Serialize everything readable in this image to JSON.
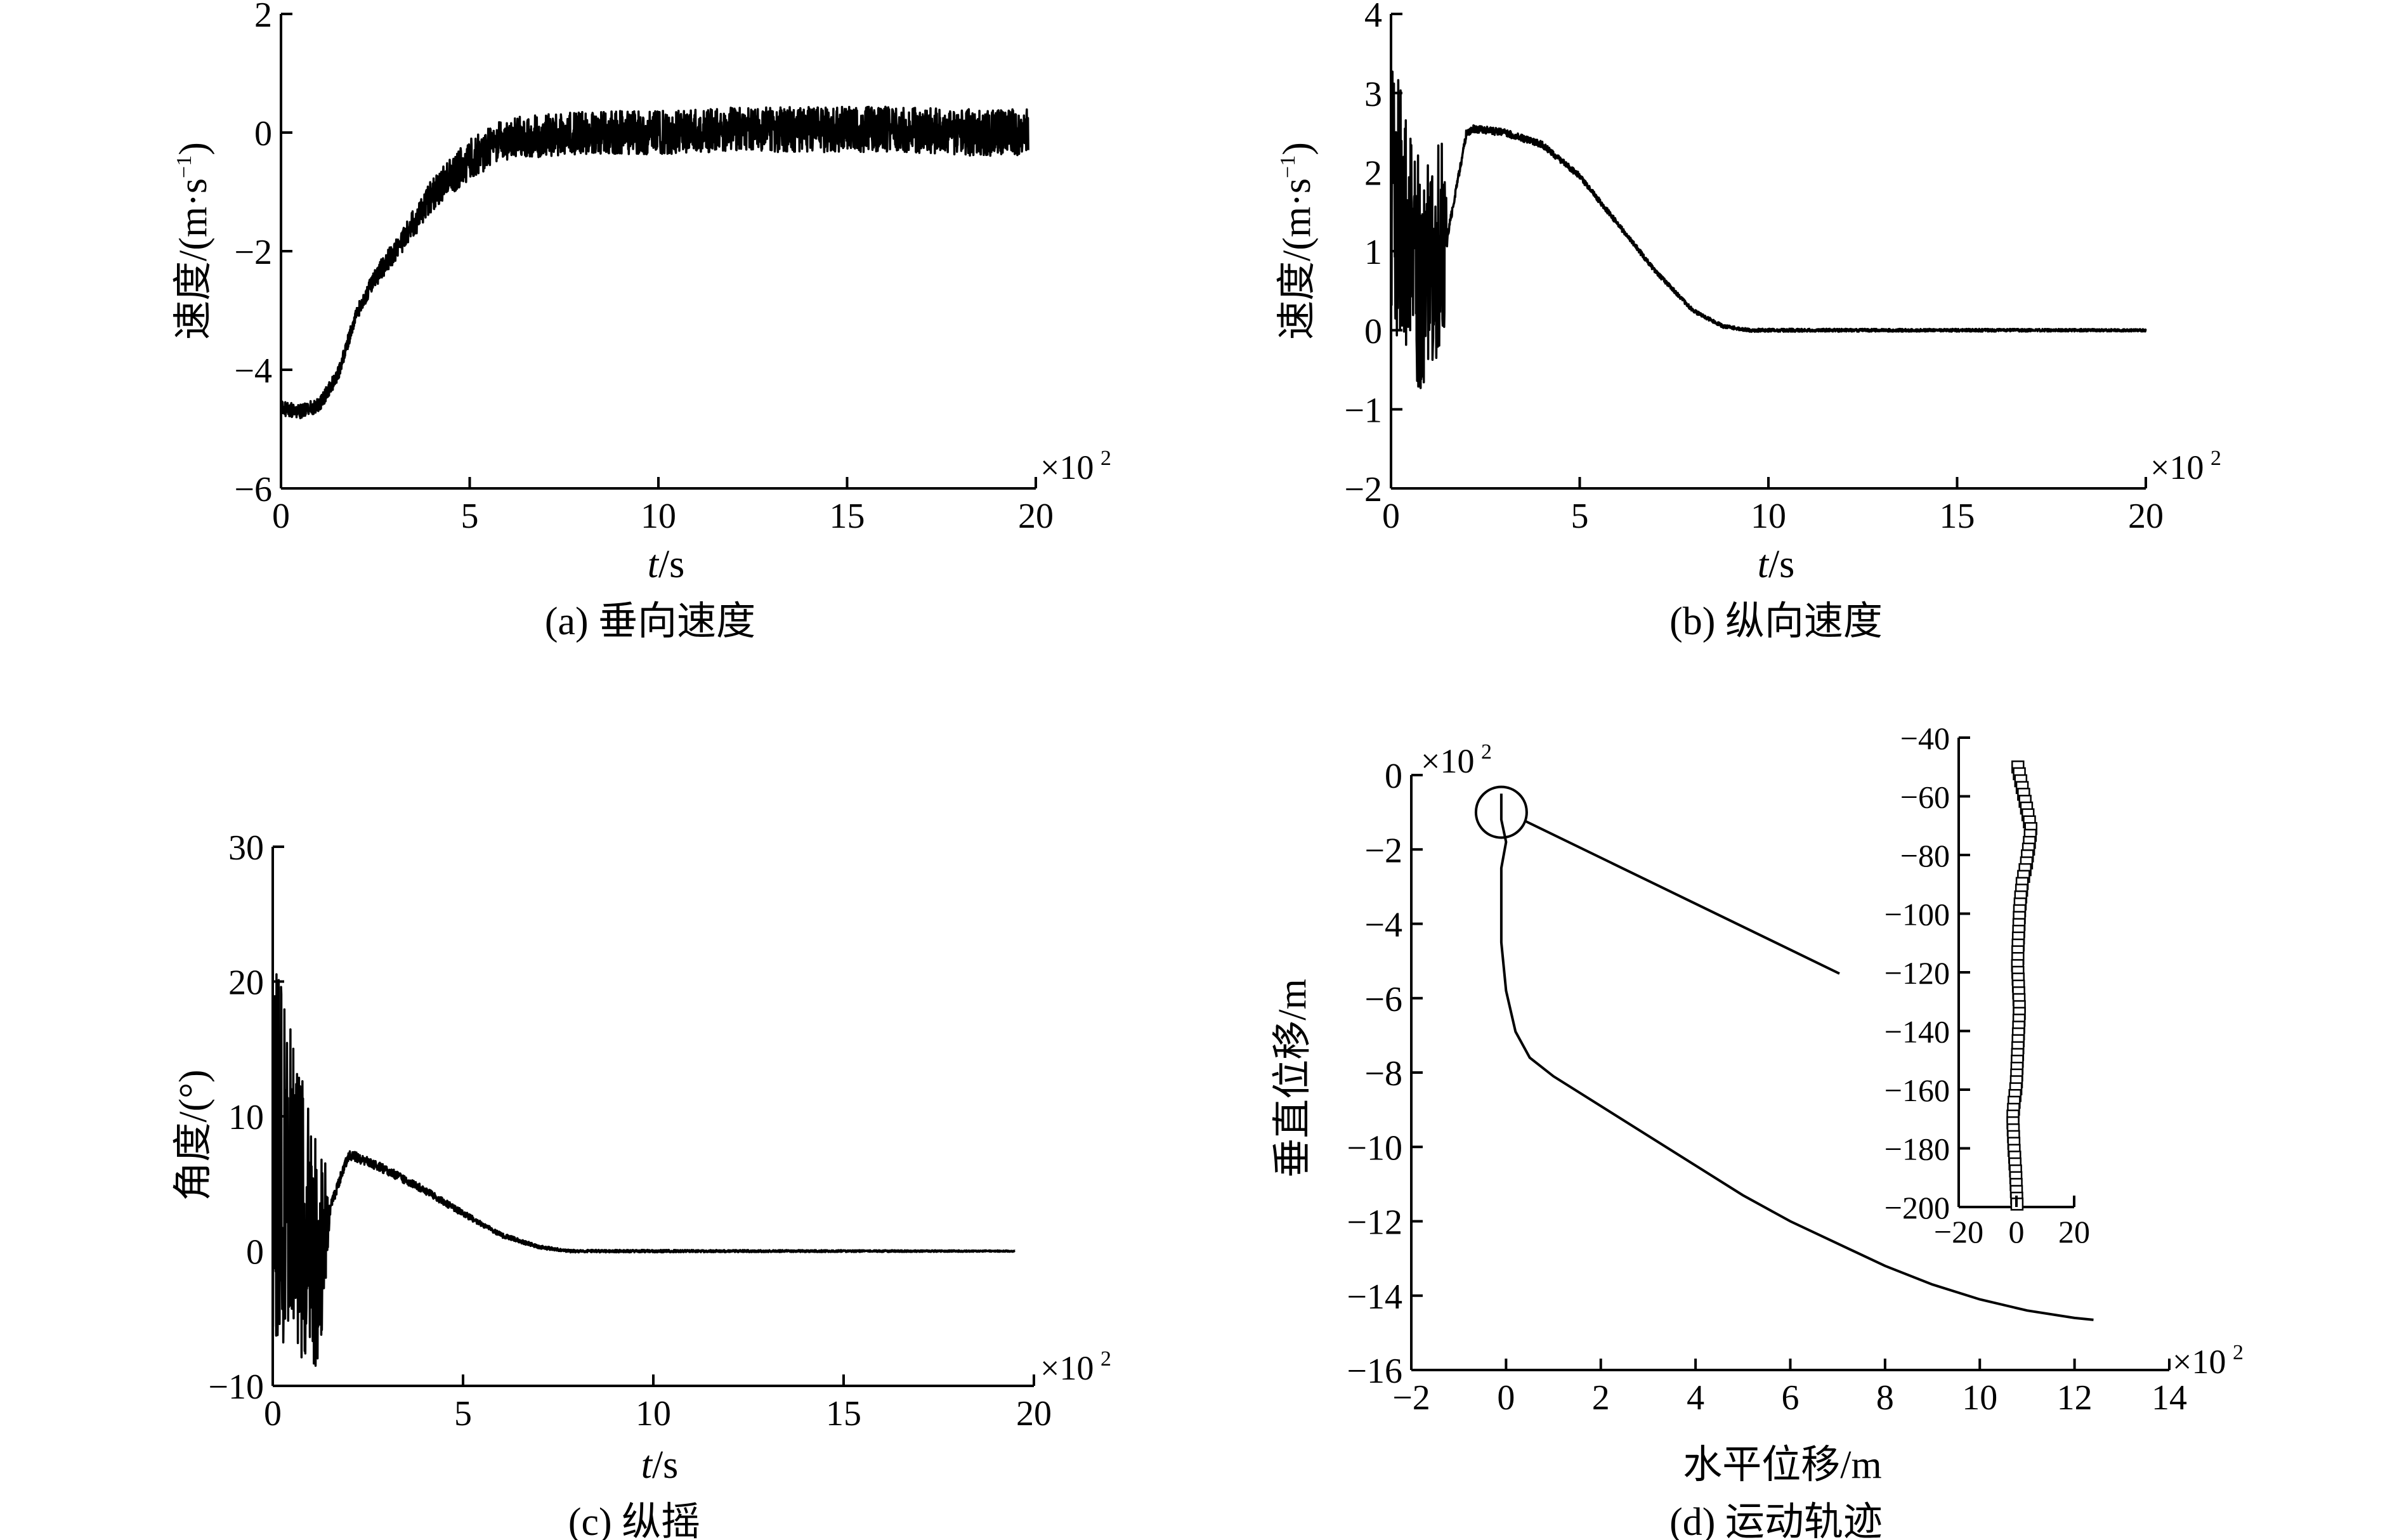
{
  "chart_data": [
    {
      "id": "a",
      "type": "line",
      "caption": "(a) 垂向速度",
      "xlabel_var": "t",
      "xlabel_unit": "/s",
      "ylabel": "速度/(m·s",
      "ylabel_sup": "−1",
      "ylabel_close": ")",
      "x_multiplier": "×10",
      "x_multiplier_exp": "2",
      "xlim": [
        0,
        20
      ],
      "ylim": [
        -6,
        2
      ],
      "xticks": [
        0,
        5,
        10,
        15,
        20
      ],
      "yticks": [
        -6,
        -4,
        -2,
        0,
        2
      ],
      "xtick_labels": [
        "0",
        "5",
        "10",
        "15",
        "20"
      ],
      "ytick_labels": [
        "−6",
        "−4",
        "−2",
        "0",
        "2"
      ],
      "series": [
        {
          "name": "垂向速度",
          "noise_profile": [
            [
              0,
              0.12
            ],
            [
              2,
              0.12
            ],
            [
              5,
              0.35
            ],
            [
              20,
              0.4
            ]
          ],
          "x": [
            0,
            0.5,
            1.0,
            1.5,
            2.0,
            2.5,
            3.0,
            3.5,
            4.0,
            5.0,
            6.0,
            8.0,
            10.0,
            12.0,
            14.0,
            16.0,
            18.0,
            19.8
          ],
          "y": [
            -4.65,
            -4.7,
            -4.6,
            -4.1,
            -3.05,
            -2.45,
            -2.0,
            -1.55,
            -1.05,
            -0.45,
            -0.1,
            0.0,
            0.0,
            0.05,
            0.05,
            0.05,
            0.0,
            0.0
          ]
        }
      ]
    },
    {
      "id": "b",
      "type": "line",
      "caption": "(b) 纵向速度",
      "xlabel_var": "t",
      "xlabel_unit": "/s",
      "ylabel": "速度/(m·s",
      "ylabel_sup": "−1",
      "ylabel_close": ")",
      "x_multiplier": "×10",
      "x_multiplier_exp": "2",
      "xlim": [
        0,
        20
      ],
      "ylim": [
        -2,
        4
      ],
      "xticks": [
        0,
        5,
        10,
        15,
        20
      ],
      "yticks": [
        -2,
        -1,
        0,
        1,
        2,
        3,
        4
      ],
      "xtick_labels": [
        "0",
        "5",
        "10",
        "15",
        "20"
      ],
      "ytick_labels": [
        "−2",
        "−1",
        "0",
        "1",
        "2",
        "3",
        "4"
      ],
      "series": [
        {
          "name": "纵向速度",
          "noise_profile": [
            [
              0,
              1.7
            ],
            [
              1.4,
              1.3
            ],
            [
              1.5,
              0.05
            ],
            [
              9,
              0.02
            ],
            [
              20,
              0.015
            ]
          ],
          "x": [
            0,
            0.3,
            0.6,
            0.9,
            1.2,
            1.5,
            2.0,
            2.2,
            3.0,
            4.0,
            5.0,
            6.0,
            7.0,
            8.0,
            8.8,
            9.5,
            12.0,
            16.0,
            20.0
          ],
          "y": [
            1.6,
            1.5,
            0.8,
            0.6,
            1.0,
            1.2,
            2.5,
            2.55,
            2.5,
            2.35,
            1.95,
            1.35,
            0.75,
            0.25,
            0.05,
            0.0,
            0.0,
            0.0,
            0.0
          ]
        }
      ]
    },
    {
      "id": "c",
      "type": "line",
      "caption": "(c) 纵摇",
      "xlabel_var": "t",
      "xlabel_unit": "/s",
      "ylabel": "角度/(°)",
      "x_multiplier": "×10",
      "x_multiplier_exp": "2",
      "xlim": [
        0,
        20
      ],
      "ylim": [
        -10,
        30
      ],
      "xticks": [
        0,
        5,
        10,
        15,
        20
      ],
      "yticks": [
        -10,
        0,
        10,
        20,
        30
      ],
      "xtick_labels": [
        "0",
        "5",
        "10",
        "15",
        "20"
      ],
      "ytick_labels": [
        "−10",
        "0",
        "10",
        "20",
        "30"
      ],
      "series": [
        {
          "name": "纵摇",
          "noise_profile": [
            [
              0,
              15
            ],
            [
              1.3,
              8
            ],
            [
              1.5,
              0.4
            ],
            [
              7.5,
              0.1
            ],
            [
              19.5,
              0.05
            ]
          ],
          "x": [
            0,
            0.4,
            0.8,
            1.2,
            1.6,
            2.0,
            3.0,
            4.0,
            5.0,
            6.0,
            7.0,
            7.8,
            10.0,
            15.0,
            19.5
          ],
          "y": [
            8,
            6,
            2,
            0,
            4,
            7.2,
            6.0,
            4.5,
            2.8,
            1.2,
            0.3,
            0.0,
            0.0,
            0.0,
            0.0
          ]
        }
      ]
    },
    {
      "id": "d",
      "type": "line",
      "caption": "(d) 运动轨迹",
      "xlabel": "水平位移/m",
      "ylabel": "垂直位移/m",
      "x_multiplier": "×10",
      "x_multiplier_exp": "2",
      "y_multiplier": "×10",
      "y_multiplier_exp": "2",
      "xlim": [
        -2,
        14
      ],
      "ylim": [
        -16,
        0
      ],
      "xticks": [
        -2,
        0,
        2,
        4,
        6,
        8,
        10,
        12,
        14
      ],
      "yticks": [
        -16,
        -14,
        -12,
        -10,
        -8,
        -6,
        -4,
        -2,
        0
      ],
      "xtick_labels": [
        "−2",
        "0",
        "2",
        "4",
        "6",
        "8",
        "10",
        "12",
        "14"
      ],
      "ytick_labels": [
        "−16",
        "−14",
        "−12",
        "−10",
        "−8",
        "−6",
        "−4",
        "−2",
        "0"
      ],
      "series": [
        {
          "name": "运动轨迹",
          "x": [
            -0.1,
            -0.1,
            0.0,
            -0.1,
            -0.1,
            -0.1,
            0.0,
            0.2,
            0.5,
            1.0,
            2.0,
            3.0,
            4.0,
            5.0,
            6.0,
            7.0,
            8.0,
            9.0,
            10.0,
            11.0,
            12.0,
            12.4
          ],
          "y": [
            -0.5,
            -1.2,
            -1.8,
            -2.5,
            -3.4,
            -4.5,
            -5.8,
            -6.9,
            -7.6,
            -8.1,
            -8.9,
            -9.7,
            -10.5,
            -11.3,
            -12.0,
            -12.6,
            -13.2,
            -13.7,
            -14.1,
            -14.4,
            -14.6,
            -14.65
          ]
        }
      ],
      "zoom_circle_center": [
        -0.1,
        -1.0
      ],
      "inset": {
        "xlim": [
          -20,
          20
        ],
        "ylim": [
          -200,
          -40
        ],
        "xticks": [
          -20,
          0,
          20
        ],
        "yticks": [
          -200,
          -180,
          -160,
          -140,
          -120,
          -100,
          -80,
          -60,
          -40
        ],
        "xtick_labels": [
          "−20",
          "0",
          "20"
        ],
        "ytick_labels": [
          "−200",
          "−180",
          "−160",
          "−140",
          "−120",
          "−100",
          "−80",
          "−60",
          "−40"
        ],
        "marker": "square",
        "points_x": [
          0.5,
          1,
          1.5,
          2,
          2.5,
          3,
          3.5,
          4,
          4.5,
          5,
          4.8,
          4.5,
          4.2,
          3.8,
          3.5,
          3,
          2.5,
          2,
          1.8,
          1.5,
          1.3,
          1.1,
          1,
          0.9,
          0.8,
          0.7,
          0.6,
          0.5,
          0.5,
          0.4,
          0.5,
          0.6,
          0.7,
          0.8,
          0.9,
          1,
          1,
          0.9,
          0.8,
          0.7,
          0.6,
          0.5,
          0.4,
          0.3,
          0.2,
          0.1,
          0,
          -0.2,
          -0.5,
          -0.8,
          -1,
          -1.2,
          -1.2,
          -1.1,
          -1,
          -0.9,
          -0.8,
          -0.6,
          -0.5,
          -0.3,
          -0.2,
          -0.1,
          0,
          0.1,
          0.2
        ],
        "points_y": [
          -50,
          -52.3,
          -54.7,
          -57,
          -59.3,
          -61.7,
          -64,
          -66.3,
          -68.7,
          -71,
          -73.3,
          -75.7,
          -78,
          -80.3,
          -82.7,
          -85,
          -87.3,
          -89.7,
          -92,
          -94.3,
          -96.7,
          -99,
          -101.3,
          -103.7,
          -106,
          -108.3,
          -110.7,
          -113,
          -115.3,
          -117.7,
          -120,
          -122.3,
          -124.7,
          -127,
          -129.3,
          -131.7,
          -134,
          -136.3,
          -138.7,
          -141,
          -143.3,
          -145.7,
          -148,
          -150.3,
          -152.7,
          -155,
          -157.3,
          -159.7,
          -162,
          -164.3,
          -166.7,
          -169,
          -171.3,
          -173.7,
          -176,
          -178.3,
          -180.7,
          -183,
          -185.3,
          -187.7,
          -190,
          -192.3,
          -194.7,
          -197,
          -199
        ]
      }
    }
  ]
}
